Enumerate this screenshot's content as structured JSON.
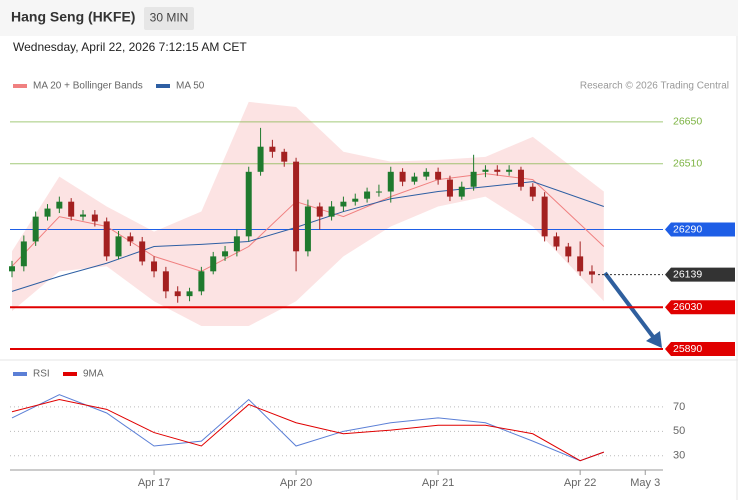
{
  "chart_data": [
    {
      "type": "candlestick",
      "title": "Hang Seng (HKFE)",
      "timeframe": "30 MIN",
      "subtitle": "Wednesday, April 22, 2026 7:12:15 AM CET",
      "source": "Research © 2026 Trading Central",
      "x": [
        0,
        1,
        2,
        3,
        4,
        5,
        6,
        7,
        8,
        9,
        10,
        11,
        12,
        13,
        14,
        15,
        16,
        17,
        18,
        19,
        20,
        21,
        22,
        23,
        24,
        25,
        26,
        27,
        28,
        29,
        30,
        31,
        32,
        33,
        34,
        35,
        36,
        37,
        38,
        39,
        40,
        41,
        42,
        43,
        44,
        45,
        46,
        47,
        48,
        49
      ],
      "open": [
        26150,
        26167,
        26250,
        26333,
        26360,
        26383,
        26333,
        26340,
        26317,
        26200,
        26267,
        26250,
        26183,
        26150,
        26083,
        26067,
        26083,
        26150,
        26200,
        26217,
        26267,
        26483,
        26567,
        26550,
        26517,
        26217,
        26367,
        26333,
        26367,
        26383,
        26393,
        26417,
        26417,
        26483,
        26450,
        26467,
        26483,
        26457,
        26400,
        26433,
        26483,
        26490,
        26483,
        26490,
        26433,
        26400,
        26267,
        26233,
        26200,
        26150
      ],
      "high": [
        26185,
        26270,
        26350,
        26375,
        26400,
        26395,
        26355,
        26355,
        26330,
        26285,
        26280,
        26265,
        26200,
        26165,
        26100,
        26095,
        26165,
        26215,
        26235,
        26290,
        26500,
        26630,
        26590,
        26560,
        26530,
        26390,
        26380,
        26385,
        26400,
        26410,
        26430,
        26440,
        26500,
        26495,
        26480,
        26495,
        26497,
        26470,
        26450,
        26540,
        26505,
        26505,
        26505,
        26500,
        26445,
        26415,
        26280,
        26245,
        26250,
        26170
      ],
      "low": [
        26130,
        26150,
        26235,
        26320,
        26345,
        26320,
        26320,
        26300,
        26185,
        26190,
        26235,
        26170,
        26130,
        26060,
        26045,
        26050,
        26070,
        26140,
        26185,
        26200,
        26250,
        26470,
        26530,
        26500,
        26150,
        26200,
        26290,
        26320,
        26350,
        26370,
        26380,
        26400,
        26380,
        26435,
        26440,
        26455,
        26440,
        26385,
        26390,
        26420,
        26465,
        26470,
        26470,
        26420,
        26385,
        26250,
        26220,
        26180,
        26135,
        26110
      ],
      "close": [
        26167,
        26250,
        26333,
        26360,
        26383,
        26333,
        26340,
        26317,
        26200,
        26267,
        26250,
        26183,
        26150,
        26083,
        26067,
        26083,
        26150,
        26200,
        26217,
        26267,
        26483,
        26567,
        26550,
        26517,
        26217,
        26367,
        26333,
        26367,
        26383,
        26393,
        26417,
        26417,
        26483,
        26450,
        26467,
        26483,
        26457,
        26400,
        26433,
        26483,
        26490,
        26483,
        26490,
        26433,
        26400,
        26267,
        26233,
        26200,
        26150,
        26139
      ],
      "up_color": "#1f7a2e",
      "down_color": "#a32020",
      "series": [
        {
          "name": "MA 20 + Bollinger Bands",
          "color": "#f08080",
          "x": [
            0,
            4,
            8,
            12,
            16,
            20,
            24,
            28,
            32,
            36,
            40,
            44,
            50
          ],
          "values": [
            26167,
            26333,
            26300,
            26200,
            26150,
            26233,
            26383,
            26333,
            26400,
            26457,
            26477,
            26457,
            26233
          ],
          "upper": [
            26217,
            26467,
            26367,
            26283,
            26350,
            26717,
            26700,
            26550,
            26517,
            26523,
            26533,
            26600,
            26417
          ],
          "lower": [
            26017,
            26150,
            26167,
            26050,
            25967,
            25967,
            26050,
            26200,
            26300,
            26367,
            26400,
            26300,
            26050
          ]
        },
        {
          "name": "MA 50",
          "color": "#2e5fa3",
          "x": [
            0,
            4,
            8,
            12,
            16,
            20,
            24,
            28,
            32,
            36,
            40,
            44,
            50
          ],
          "values": [
            26083,
            26133,
            26177,
            26233,
            26240,
            26250,
            26297,
            26350,
            26393,
            26417,
            26433,
            26450,
            26367
          ]
        }
      ],
      "levels": [
        {
          "value": 26650,
          "color": "#7cb342",
          "style": "thin",
          "boxed": false
        },
        {
          "value": 26510,
          "color": "#7cb342",
          "style": "thin",
          "boxed": false
        },
        {
          "value": 26290,
          "color": "#1e5ee6",
          "style": "thin",
          "boxed": true
        },
        {
          "value": 26139,
          "color": "#333333",
          "style": "dotted",
          "boxed": true
        },
        {
          "value": 26030,
          "color": "#e00000",
          "style": "bold",
          "boxed": true
        },
        {
          "value": 25890,
          "color": "#e00000",
          "style": "bold",
          "boxed": true
        }
      ],
      "xlim": [
        0,
        55
      ],
      "ylim": [
        25860,
        26740
      ]
    },
    {
      "type": "line",
      "series": [
        {
          "name": "RSI",
          "color": "#5b7fd6",
          "x": [
            0,
            4,
            8,
            12,
            16,
            20,
            24,
            28,
            32,
            36,
            40,
            44,
            48,
            50
          ],
          "values": [
            61,
            80,
            65,
            38,
            42,
            76,
            38,
            50,
            57,
            61,
            57,
            42,
            26,
            33
          ]
        },
        {
          "name": "9MA",
          "color": "#e00000",
          "x": [
            0,
            4,
            8,
            12,
            16,
            20,
            24,
            28,
            32,
            36,
            40,
            44,
            48,
            50
          ],
          "values": [
            66,
            76,
            68,
            49,
            38,
            72,
            57,
            48,
            51,
            55,
            55,
            48,
            26,
            33
          ]
        }
      ],
      "xlim": [
        0,
        55
      ],
      "xticks": [
        {
          "value": 12,
          "label": "Apr 17"
        },
        {
          "value": 24,
          "label": "Apr 20"
        },
        {
          "value": 36,
          "label": "Apr 21"
        },
        {
          "value": 48,
          "label": "Apr 22"
        },
        {
          "value": 53.5,
          "label": "May 3"
        }
      ],
      "ylim": [
        20,
        92
      ],
      "yticks": [
        30,
        50,
        70
      ]
    }
  ]
}
